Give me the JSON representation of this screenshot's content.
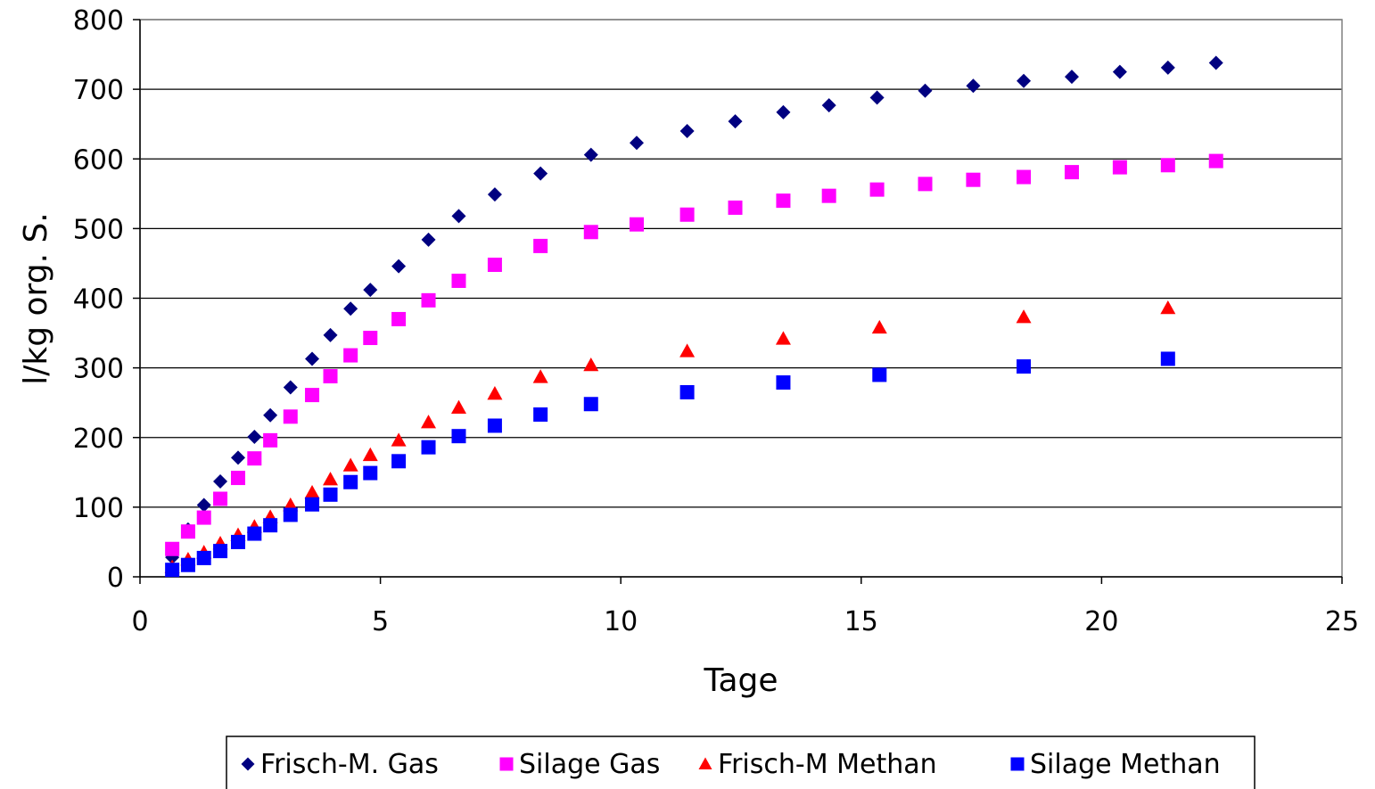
{
  "chart_data": {
    "type": "scatter",
    "title": "",
    "xlabel": "Tage",
    "ylabel": "l/kg org. S.",
    "xlim": [
      0,
      25
    ],
    "ylim": [
      0,
      800
    ],
    "xticks": [
      "0",
      "5",
      "10",
      "15",
      "20",
      "25"
    ],
    "yticks": [
      "0",
      "100",
      "200",
      "300",
      "400",
      "500",
      "600",
      "700",
      "800"
    ],
    "grid": "horizontal",
    "legend_position": "bottom",
    "series": [
      {
        "name": "Frisch-M. Gas",
        "marker": "diamond",
        "color": "#000080",
        "x": [
          0.67,
          1.0,
          1.33,
          1.67,
          2.04,
          2.38,
          2.71,
          3.13,
          3.58,
          3.96,
          4.38,
          4.79,
          5.38,
          6.0,
          6.63,
          7.38,
          8.33,
          9.38,
          10.33,
          11.38,
          12.38,
          13.38,
          14.33,
          15.33,
          16.33,
          17.33,
          18.38,
          19.38,
          20.38,
          21.38,
          22.38
        ],
        "y": [
          28,
          68,
          103,
          137,
          171,
          201,
          232,
          272,
          313,
          347,
          385,
          412,
          446,
          484,
          518,
          549,
          579,
          606,
          623,
          640,
          654,
          667,
          677,
          688,
          698,
          705,
          712,
          718,
          725,
          731,
          738
        ]
      },
      {
        "name": "Silage Gas",
        "marker": "square",
        "color": "#ff00ff",
        "x": [
          0.67,
          1.0,
          1.33,
          1.67,
          2.04,
          2.38,
          2.71,
          3.13,
          3.58,
          3.96,
          4.38,
          4.79,
          5.38,
          6.0,
          6.63,
          7.38,
          8.33,
          9.38,
          10.33,
          11.38,
          12.38,
          13.38,
          14.33,
          15.33,
          16.33,
          17.33,
          18.38,
          19.38,
          20.38,
          21.38,
          22.38
        ],
        "y": [
          40,
          65,
          85,
          112,
          142,
          170,
          196,
          230,
          261,
          288,
          318,
          343,
          370,
          397,
          425,
          448,
          475,
          495,
          506,
          520,
          530,
          540,
          547,
          556,
          564,
          570,
          574,
          581,
          588,
          591,
          597
        ]
      },
      {
        "name": "Frisch-M Methan",
        "marker": "triangle",
        "color": "#ff0000",
        "x": [
          0.67,
          1.0,
          1.33,
          1.67,
          2.04,
          2.38,
          2.71,
          3.13,
          3.58,
          3.96,
          4.38,
          4.79,
          5.38,
          6.0,
          6.63,
          7.38,
          8.33,
          9.38,
          11.38,
          13.38,
          15.38,
          18.38,
          21.38
        ],
        "y": [
          14,
          25,
          35,
          48,
          60,
          72,
          86,
          103,
          121,
          140,
          160,
          175,
          196,
          222,
          243,
          263,
          287,
          304,
          324,
          342,
          358,
          373,
          386
        ]
      },
      {
        "name": "Silage Methan",
        "marker": "square",
        "color": "#0000ff",
        "x": [
          0.67,
          1.0,
          1.33,
          1.67,
          2.04,
          2.38,
          2.71,
          3.13,
          3.58,
          3.96,
          4.38,
          4.79,
          5.38,
          6.0,
          6.63,
          7.38,
          8.33,
          9.38,
          11.38,
          13.38,
          15.38,
          18.38,
          21.38
        ],
        "y": [
          10,
          17,
          27,
          37,
          50,
          62,
          74,
          89,
          104,
          118,
          136,
          149,
          166,
          186,
          202,
          217,
          233,
          248,
          265,
          279,
          290,
          302,
          313
        ]
      }
    ]
  }
}
